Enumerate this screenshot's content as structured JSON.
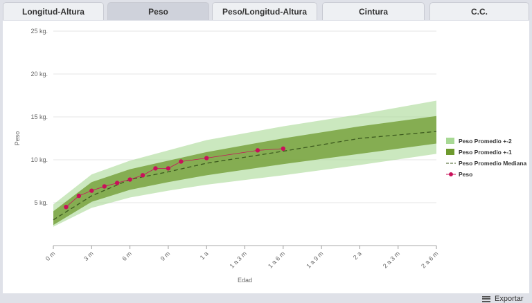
{
  "tabs": [
    "Longitud-Altura",
    "Peso",
    "Peso/Longitud-Altura",
    "Cintura",
    "C.C."
  ],
  "export_label": "Exportar",
  "chart_data": {
    "type": "line",
    "x_label": "Edad",
    "y_label": "Peso",
    "xlim": [
      0,
      30
    ],
    "ylim": [
      0,
      25
    ],
    "xticks": [
      {
        "value": 0,
        "label": "0 m"
      },
      {
        "value": 3,
        "label": "3 m"
      },
      {
        "value": 6,
        "label": "6 m"
      },
      {
        "value": 9,
        "label": "9 m"
      },
      {
        "value": 12,
        "label": "1 a"
      },
      {
        "value": 15,
        "label": "1 a 3 m"
      },
      {
        "value": 18,
        "label": "1 a 6 m"
      },
      {
        "value": 21,
        "label": "1 a 9 m"
      },
      {
        "value": 24,
        "label": "2 a"
      },
      {
        "value": 27,
        "label": "2 a 3 m"
      },
      {
        "value": 30,
        "label": "2 a 6 m"
      }
    ],
    "yticks": [
      {
        "value": 5,
        "label": "5 kg."
      },
      {
        "value": 10,
        "label": "10 kg."
      },
      {
        "value": 15,
        "label": "15 kg."
      },
      {
        "value": 20,
        "label": "20 kg."
      },
      {
        "value": 25,
        "label": "25 kg."
      }
    ],
    "grid": true,
    "legend": "right",
    "series": [
      {
        "name": "Peso Promedio +-2",
        "kind": "band",
        "color": "#a8d995",
        "x": [
          0,
          3,
          6,
          9,
          12,
          18,
          24,
          30
        ],
        "low": [
          2.2,
          4.4,
          5.6,
          6.4,
          7.1,
          8.2,
          9.4,
          10.7
        ],
        "high": [
          4.8,
          8.3,
          9.9,
          11.1,
          12.3,
          13.9,
          15.3,
          16.9
        ]
      },
      {
        "name": "Peso Promedio +-1",
        "kind": "band",
        "color": "#6e9a2e",
        "x": [
          0,
          3,
          6,
          9,
          12,
          18,
          24,
          30
        ],
        "low": [
          2.4,
          5.1,
          6.5,
          7.4,
          8.2,
          9.5,
          10.7,
          11.9
        ],
        "high": [
          4.0,
          7.4,
          8.9,
          9.9,
          10.9,
          12.5,
          13.9,
          15.1
        ]
      },
      {
        "name": "Peso Promedio Mediana",
        "kind": "dashed-line",
        "color": "#3c5a1e",
        "x": [
          0,
          3,
          6,
          9,
          12,
          18,
          24,
          30
        ],
        "values": [
          3.0,
          5.8,
          7.7,
          8.6,
          9.6,
          11.0,
          12.5,
          13.3
        ]
      },
      {
        "name": "Peso",
        "kind": "line-markers",
        "color": "#c8105a",
        "x": [
          1,
          2,
          3,
          4,
          5,
          6,
          7,
          8,
          9,
          10,
          12,
          16,
          18
        ],
        "values": [
          4.5,
          5.8,
          6.4,
          6.9,
          7.3,
          7.7,
          8.2,
          9.0,
          9.0,
          9.8,
          10.2,
          11.1,
          11.3
        ]
      }
    ]
  }
}
